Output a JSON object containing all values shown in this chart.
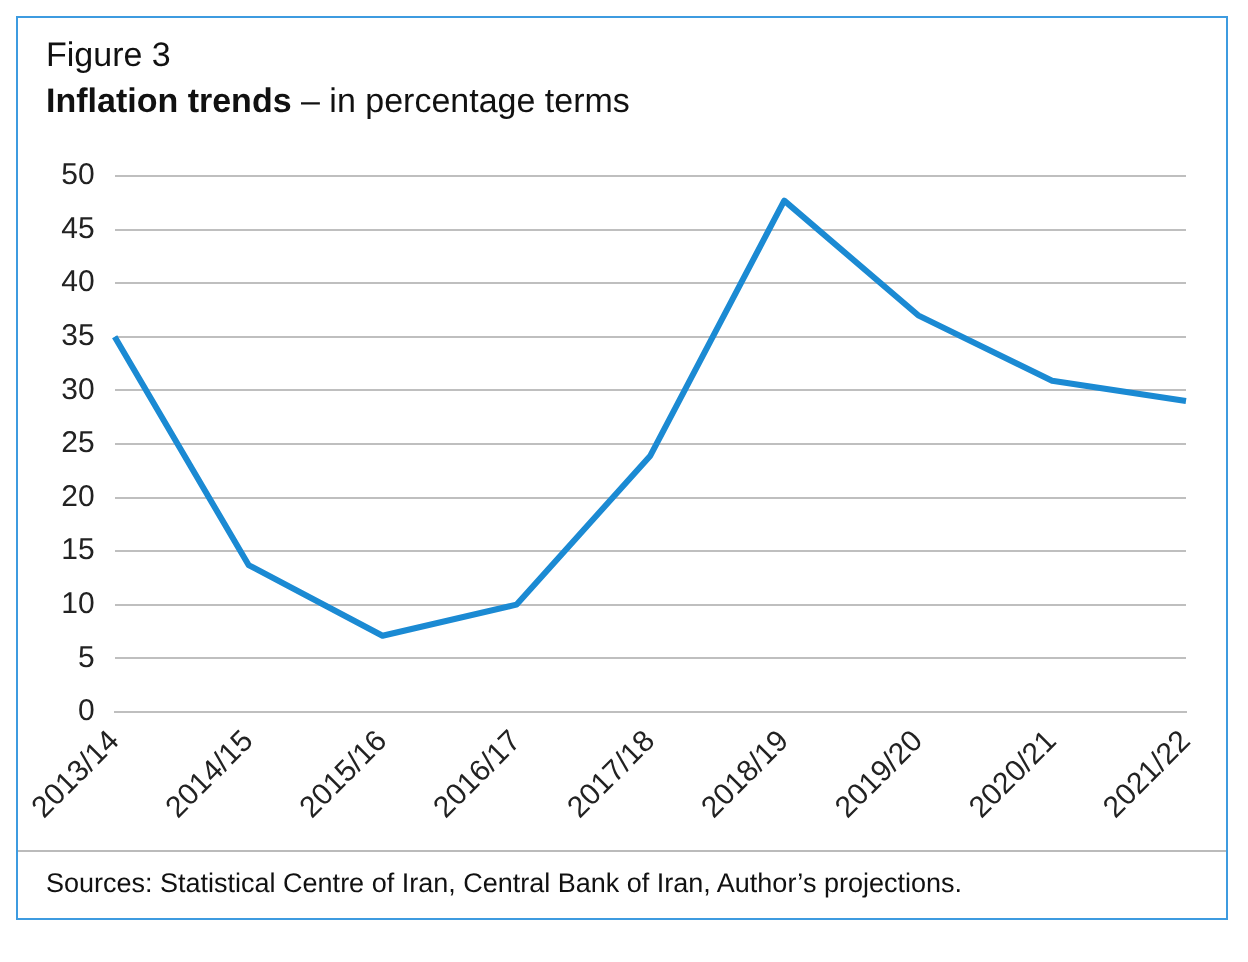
{
  "chart_data": {
    "type": "line",
    "title": "Figure 3",
    "subtitle": "Inflation trends – in percentage terms",
    "categories": [
      "2013/14",
      "2014/15",
      "2015/16",
      "2016/17",
      "2017/18",
      "2018/19",
      "2019/20",
      "2020/21",
      "2021/22"
    ],
    "series": [
      {
        "color": "#1b8ad3",
        "values": [
          35,
          13.7,
          7.1,
          10,
          23.9,
          47.7,
          37,
          30.9,
          29
        ]
      }
    ],
    "ylim": [
      0,
      50
    ],
    "yticks": [
      0,
      5,
      10,
      15,
      20,
      25,
      30,
      35,
      40,
      45,
      50
    ],
    "grid": "y",
    "legend": false,
    "marker": "none",
    "line_style": "solid",
    "annotations": [
      "Sources: Statistical Centre of Iran, Central Bank of Iran, Author’s projections."
    ]
  }
}
